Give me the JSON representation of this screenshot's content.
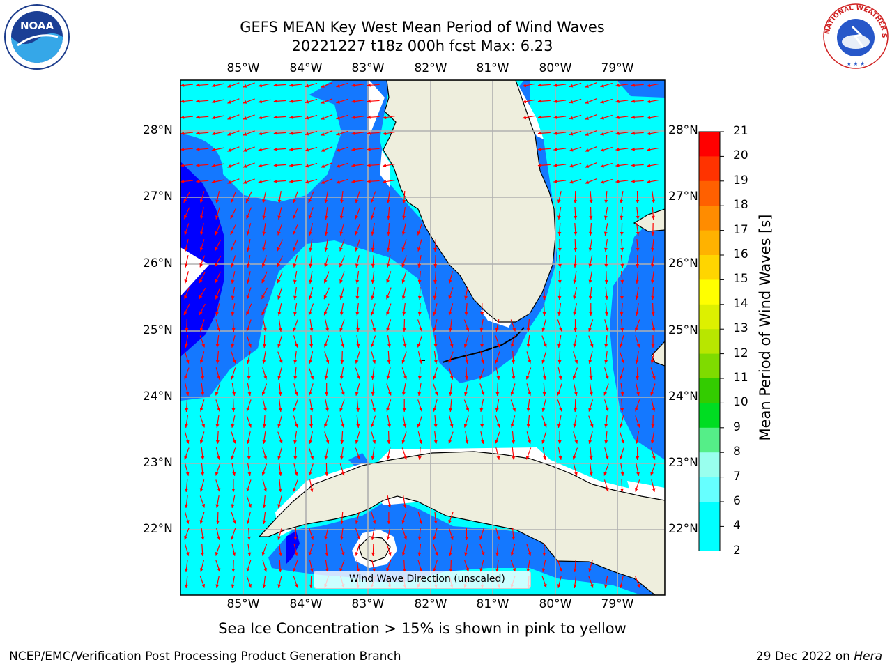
{
  "title_line1": "GEFS MEAN Key West Mean Period of Wind Waves",
  "title_line2": "20221227 t18z 000h fcst   Max: 6.23",
  "lon_labels": [
    "85°W",
    "84°W",
    "83°W",
    "82°W",
    "81°W",
    "80°W",
    "79°W"
  ],
  "lat_labels": [
    "28°N",
    "27°N",
    "26°N",
    "25°N",
    "24°N",
    "23°N",
    "22°N"
  ],
  "legend": {
    "label": "Wind Wave Direction (unscaled)"
  },
  "colorbar": {
    "label": "Mean Period of Wind Waves [s]",
    "ticks": [
      "21",
      "20",
      "19",
      "18",
      "17",
      "16",
      "15",
      "14",
      "13",
      "12",
      "11",
      "10",
      "9",
      "8",
      "7",
      "6",
      "4",
      "2"
    ],
    "colors": [
      "#ff0000",
      "#ff3300",
      "#ff6000",
      "#ff8c00",
      "#ffb200",
      "#ffd500",
      "#ffff00",
      "#ddf000",
      "#b8e600",
      "#7fdb00",
      "#33cc00",
      "#00dd22",
      "#55ee88",
      "#99ffee",
      "#66ffff",
      "#00ffff",
      "#00ffff",
      "#0080ff"
    ],
    "extend_color": "#0000ff"
  },
  "map_colors": {
    "period_2_4": "#1478ff",
    "period_4_6": "#00ffff",
    "period_below_2": "#0000ff",
    "land": "#eeeedd",
    "arrows": "#ff0000",
    "grid": "#b0b0b0"
  },
  "note": "Sea Ice Concentration > 15% is shown in pink to yellow",
  "footer_left": "NCEP/EMC/Verification Post Processing Product Generation Branch",
  "footer_right_date": "29 Dec 2022 on ",
  "footer_right_host": "Hera",
  "logos": {
    "left": "NOAA",
    "right": "NATIONAL WEATHER SERVICE"
  }
}
